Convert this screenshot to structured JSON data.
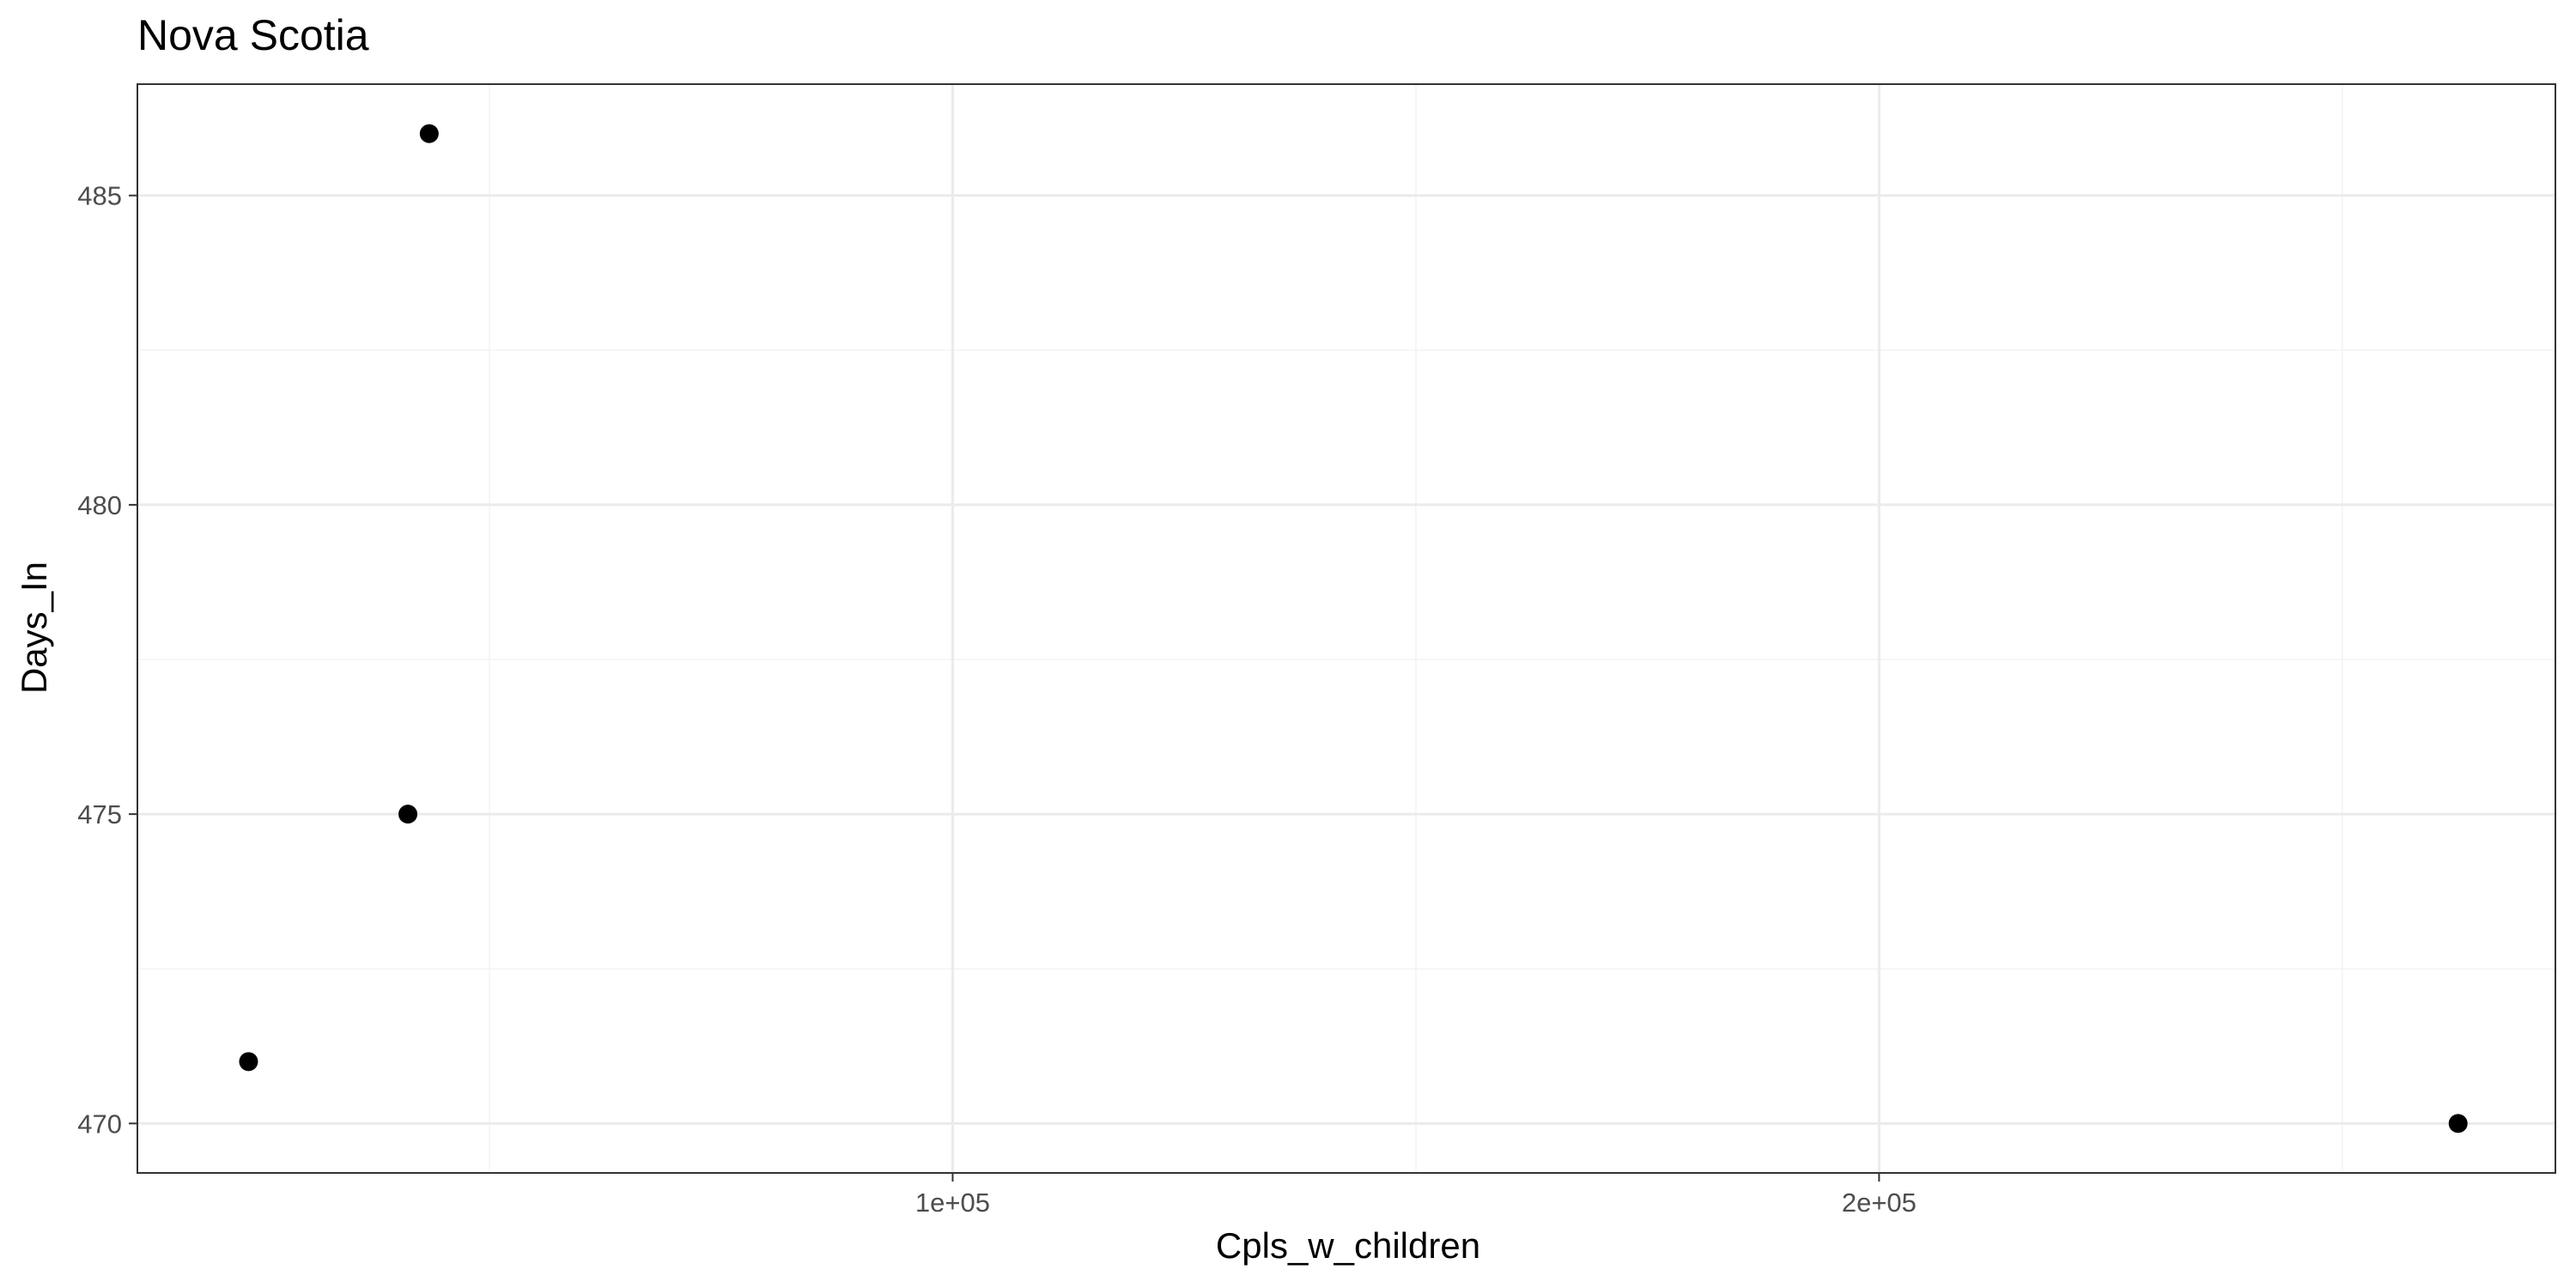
{
  "chart_data": {
    "type": "scatter",
    "title": "Nova Scotia",
    "xlabel": "Cpls_w_children",
    "ylabel": "Days_In",
    "xlim": [
      12000,
      273000
    ],
    "ylim": [
      469.2,
      486.8
    ],
    "x_ticks": [
      {
        "value": 100000,
        "label": "1e+05"
      },
      {
        "value": 200000,
        "label": "2e+05"
      }
    ],
    "x_minor_ticks": [
      50000,
      150000,
      250000
    ],
    "y_ticks": [
      {
        "value": 470,
        "label": "470"
      },
      {
        "value": 475,
        "label": "475"
      },
      {
        "value": 480,
        "label": "480"
      },
      {
        "value": 485,
        "label": "485"
      }
    ],
    "y_minor_ticks": [
      472.5,
      477.5,
      482.5
    ],
    "points": [
      {
        "x": 24000,
        "y": 471
      },
      {
        "x": 41200,
        "y": 475
      },
      {
        "x": 43500,
        "y": 486
      },
      {
        "x": 262500,
        "y": 470
      }
    ],
    "grid": true,
    "legend": "none",
    "colors": {
      "point": "#000000",
      "panel_border": "#333333",
      "grid_major": "#ebebeb",
      "grid_minor": "#f3f3f3",
      "tick_label": "#4d4d4d",
      "background": "#ffffff"
    }
  }
}
